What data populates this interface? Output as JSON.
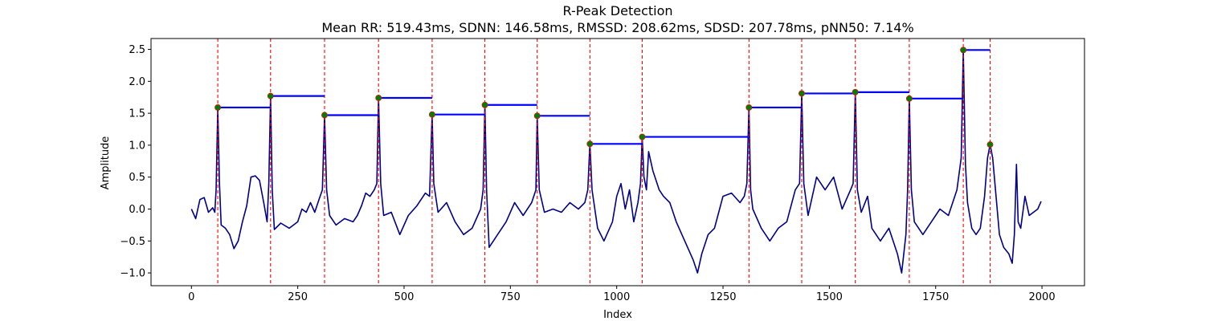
{
  "chart_data": {
    "type": "line",
    "title": "R-Peak Detection",
    "subtitle": "Mean RR: 519.43ms, SDNN: 146.58ms, RMSSD: 208.62ms, SDSD: 207.78ms, pNN50: 7.14%",
    "xlabel": "Index",
    "ylabel": "Amplitude",
    "xlim": [
      -95,
      2100
    ],
    "ylim": [
      -1.2,
      2.67
    ],
    "xticks": [
      0,
      250,
      500,
      750,
      1000,
      1250,
      1500,
      1750,
      2000
    ],
    "xtick_labels": [
      "0",
      "250",
      "500",
      "750",
      "1000",
      "1250",
      "1500",
      "1750",
      "2000"
    ],
    "yticks": [
      -1.0,
      -0.5,
      0.0,
      0.5,
      1.0,
      1.5,
      2.0,
      2.5
    ],
    "ytick_labels": [
      "−1.0",
      "−0.5",
      "0.0",
      "0.5",
      "1.0",
      "1.5",
      "2.0",
      "2.5"
    ],
    "grid": false,
    "colors": {
      "signal": "#00008b",
      "peak_line": "#ff0000",
      "rr_segment": "#0000ff",
      "peak_marker": "#008000",
      "peak_marker_edge": "#ff0000"
    },
    "peaks": [
      {
        "x": 62,
        "y": 1.59
      },
      {
        "x": 186,
        "y": 1.77
      },
      {
        "x": 313,
        "y": 1.47
      },
      {
        "x": 440,
        "y": 1.74
      },
      {
        "x": 566,
        "y": 1.48
      },
      {
        "x": 690,
        "y": 1.63
      },
      {
        "x": 813,
        "y": 1.46
      },
      {
        "x": 937,
        "y": 1.02
      },
      {
        "x": 1060,
        "y": 1.13
      },
      {
        "x": 1311,
        "y": 1.59
      },
      {
        "x": 1435,
        "y": 1.81
      },
      {
        "x": 1561,
        "y": 1.83
      },
      {
        "x": 1688,
        "y": 1.73
      },
      {
        "x": 1815,
        "y": 2.49
      },
      {
        "x": 1878,
        "y": 1.01
      }
    ],
    "rr_segments": [
      {
        "x_start": 62,
        "x_end": 186,
        "y": 1.59
      },
      {
        "x_start": 186,
        "x_end": 313,
        "y": 1.77
      },
      {
        "x_start": 313,
        "x_end": 440,
        "y": 1.47
      },
      {
        "x_start": 440,
        "x_end": 566,
        "y": 1.74
      },
      {
        "x_start": 566,
        "x_end": 690,
        "y": 1.48
      },
      {
        "x_start": 690,
        "x_end": 813,
        "y": 1.63
      },
      {
        "x_start": 813,
        "x_end": 937,
        "y": 1.46
      },
      {
        "x_start": 937,
        "x_end": 1060,
        "y": 1.02
      },
      {
        "x_start": 1060,
        "x_end": 1311,
        "y": 1.13
      },
      {
        "x_start": 1311,
        "x_end": 1435,
        "y": 1.59
      },
      {
        "x_start": 1435,
        "x_end": 1561,
        "y": 1.81
      },
      {
        "x_start": 1561,
        "x_end": 1688,
        "y": 1.83
      },
      {
        "x_start": 1688,
        "x_end": 1815,
        "y": 1.73
      },
      {
        "x_start": 1815,
        "x_end": 1878,
        "y": 2.49
      }
    ],
    "signal": [
      [
        0,
        0.0
      ],
      [
        10,
        -0.15
      ],
      [
        20,
        0.15
      ],
      [
        30,
        0.18
      ],
      [
        40,
        -0.05
      ],
      [
        50,
        0.02
      ],
      [
        55,
        -0.05
      ],
      [
        58,
        0.3
      ],
      [
        62,
        1.59
      ],
      [
        66,
        0.4
      ],
      [
        70,
        -0.25
      ],
      [
        80,
        -0.3
      ],
      [
        90,
        -0.4
      ],
      [
        100,
        -0.62
      ],
      [
        110,
        -0.5
      ],
      [
        120,
        -0.2
      ],
      [
        130,
        0.05
      ],
      [
        140,
        0.5
      ],
      [
        150,
        0.52
      ],
      [
        160,
        0.45
      ],
      [
        170,
        0.1
      ],
      [
        178,
        -0.2
      ],
      [
        182,
        0.4
      ],
      [
        186,
        1.77
      ],
      [
        190,
        0.3
      ],
      [
        195,
        -0.32
      ],
      [
        210,
        -0.22
      ],
      [
        230,
        -0.3
      ],
      [
        250,
        -0.2
      ],
      [
        260,
        0.0
      ],
      [
        270,
        -0.05
      ],
      [
        280,
        0.1
      ],
      [
        290,
        -0.05
      ],
      [
        300,
        0.15
      ],
      [
        308,
        0.3
      ],
      [
        313,
        1.47
      ],
      [
        318,
        0.3
      ],
      [
        325,
        -0.1
      ],
      [
        340,
        -0.25
      ],
      [
        360,
        -0.15
      ],
      [
        380,
        -0.2
      ],
      [
        390,
        -0.1
      ],
      [
        400,
        0.05
      ],
      [
        410,
        0.25
      ],
      [
        420,
        0.2
      ],
      [
        430,
        0.3
      ],
      [
        436,
        0.4
      ],
      [
        440,
        1.74
      ],
      [
        445,
        0.4
      ],
      [
        452,
        -0.1
      ],
      [
        470,
        -0.05
      ],
      [
        490,
        -0.4
      ],
      [
        510,
        -0.1
      ],
      [
        530,
        0.05
      ],
      [
        550,
        0.25
      ],
      [
        560,
        0.2
      ],
      [
        566,
        1.48
      ],
      [
        570,
        0.4
      ],
      [
        580,
        -0.05
      ],
      [
        600,
        0.1
      ],
      [
        620,
        -0.2
      ],
      [
        640,
        -0.4
      ],
      [
        660,
        -0.3
      ],
      [
        680,
        0.0
      ],
      [
        686,
        0.3
      ],
      [
        690,
        1.63
      ],
      [
        694,
        0.3
      ],
      [
        700,
        -0.6
      ],
      [
        720,
        -0.4
      ],
      [
        740,
        -0.2
      ],
      [
        760,
        0.1
      ],
      [
        780,
        -0.1
      ],
      [
        800,
        0.1
      ],
      [
        810,
        0.3
      ],
      [
        813,
        1.46
      ],
      [
        818,
        0.3
      ],
      [
        830,
        -0.05
      ],
      [
        850,
        0.0
      ],
      [
        870,
        -0.05
      ],
      [
        890,
        0.1
      ],
      [
        910,
        0.0
      ],
      [
        925,
        0.1
      ],
      [
        932,
        0.3
      ],
      [
        937,
        1.02
      ],
      [
        942,
        0.3
      ],
      [
        955,
        -0.3
      ],
      [
        970,
        -0.5
      ],
      [
        990,
        -0.2
      ],
      [
        1000,
        0.2
      ],
      [
        1010,
        0.4
      ],
      [
        1020,
        0.0
      ],
      [
        1030,
        0.3
      ],
      [
        1040,
        -0.2
      ],
      [
        1050,
        0.1
      ],
      [
        1056,
        0.4
      ],
      [
        1060,
        1.13
      ],
      [
        1064,
        0.5
      ],
      [
        1070,
        0.3
      ],
      [
        1075,
        0.9
      ],
      [
        1085,
        0.6
      ],
      [
        1100,
        0.3
      ],
      [
        1110,
        0.2
      ],
      [
        1125,
        0.1
      ],
      [
        1140,
        -0.2
      ],
      [
        1160,
        -0.5
      ],
      [
        1180,
        -0.8
      ],
      [
        1190,
        -1.0
      ],
      [
        1200,
        -0.7
      ],
      [
        1215,
        -0.4
      ],
      [
        1230,
        -0.3
      ],
      [
        1250,
        0.2
      ],
      [
        1270,
        0.25
      ],
      [
        1290,
        0.1
      ],
      [
        1300,
        0.2
      ],
      [
        1306,
        0.4
      ],
      [
        1311,
        1.59
      ],
      [
        1315,
        0.3
      ],
      [
        1320,
        0.0
      ],
      [
        1340,
        -0.3
      ],
      [
        1360,
        -0.5
      ],
      [
        1380,
        -0.3
      ],
      [
        1400,
        -0.2
      ],
      [
        1420,
        0.3
      ],
      [
        1430,
        0.4
      ],
      [
        1435,
        1.81
      ],
      [
        1440,
        0.4
      ],
      [
        1450,
        -0.1
      ],
      [
        1470,
        0.5
      ],
      [
        1490,
        0.3
      ],
      [
        1510,
        0.5
      ],
      [
        1530,
        0.0
      ],
      [
        1550,
        0.3
      ],
      [
        1556,
        0.4
      ],
      [
        1561,
        1.83
      ],
      [
        1566,
        0.3
      ],
      [
        1575,
        -0.05
      ],
      [
        1590,
        0.2
      ],
      [
        1600,
        -0.3
      ],
      [
        1620,
        -0.5
      ],
      [
        1640,
        -0.3
      ],
      [
        1660,
        -0.7
      ],
      [
        1670,
        -1.0
      ],
      [
        1680,
        -0.4
      ],
      [
        1684,
        0.3
      ],
      [
        1688,
        1.73
      ],
      [
        1693,
        0.3
      ],
      [
        1700,
        -0.2
      ],
      [
        1720,
        -0.4
      ],
      [
        1740,
        -0.2
      ],
      [
        1760,
        0.0
      ],
      [
        1780,
        -0.1
      ],
      [
        1800,
        0.3
      ],
      [
        1810,
        0.8
      ],
      [
        1815,
        2.49
      ],
      [
        1820,
        0.7
      ],
      [
        1825,
        0.1
      ],
      [
        1835,
        -0.3
      ],
      [
        1845,
        -0.4
      ],
      [
        1855,
        -0.3
      ],
      [
        1865,
        0.2
      ],
      [
        1872,
        0.8
      ],
      [
        1878,
        1.01
      ],
      [
        1884,
        0.8
      ],
      [
        1892,
        0.2
      ],
      [
        1900,
        -0.4
      ],
      [
        1910,
        -0.6
      ],
      [
        1922,
        -0.7
      ],
      [
        1930,
        -0.85
      ],
      [
        1935,
        -0.4
      ],
      [
        1940,
        0.7
      ],
      [
        1944,
        -0.2
      ],
      [
        1950,
        -0.3
      ],
      [
        1960,
        0.2
      ],
      [
        1970,
        -0.1
      ],
      [
        1980,
        -0.05
      ],
      [
        1990,
        0.0
      ],
      [
        1998,
        0.12
      ]
    ]
  }
}
